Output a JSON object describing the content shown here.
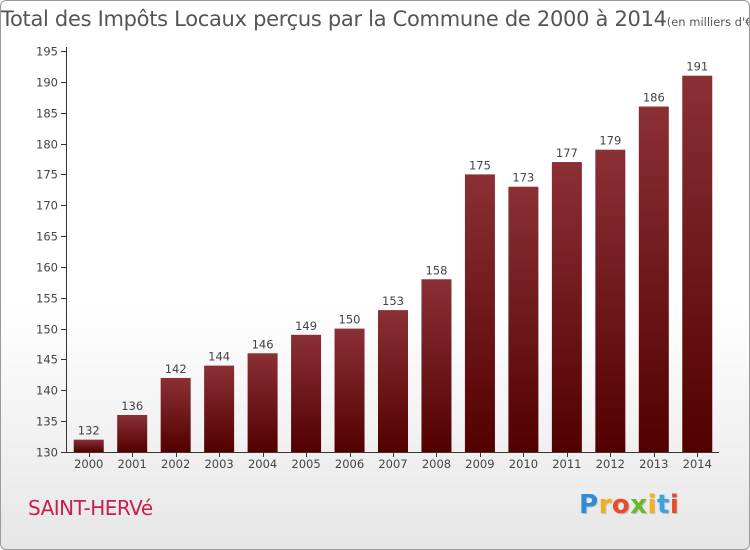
{
  "title": "Total des Impôts Locaux perçus par la Commune de 2000 à 2014",
  "unit": "(en milliers d'€)",
  "commune": "SAINT-HERVé",
  "logo": {
    "letters": [
      "P",
      "r",
      "o",
      "x",
      "i",
      "t",
      "i"
    ],
    "colors": [
      "#2e8bd6",
      "#f2b01e",
      "#e84b2a",
      "#6ab82e",
      "#f2b01e",
      "#3ca2e0",
      "#e84b2a"
    ]
  },
  "chart_data": {
    "type": "bar",
    "categories": [
      "2000",
      "2001",
      "2002",
      "2003",
      "2004",
      "2005",
      "2006",
      "2007",
      "2008",
      "2009",
      "2010",
      "2011",
      "2012",
      "2013",
      "2014"
    ],
    "values": [
      132,
      136,
      142,
      144,
      146,
      149,
      150,
      153,
      158,
      175,
      173,
      177,
      179,
      186,
      191
    ],
    "ylim": [
      130,
      195
    ],
    "yticks": [
      130,
      135,
      140,
      145,
      150,
      155,
      160,
      165,
      170,
      175,
      180,
      185,
      190,
      195
    ],
    "grid": false,
    "bar_color_top": "#8b3035",
    "bar_color_bottom": "#520000"
  }
}
